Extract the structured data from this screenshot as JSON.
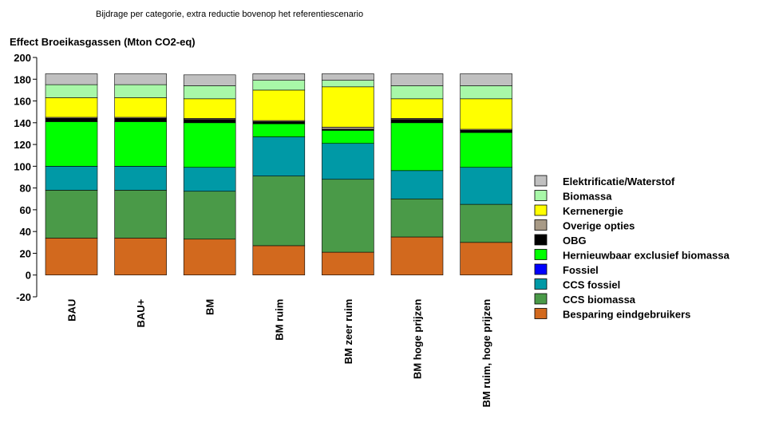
{
  "chart_data": {
    "type": "bar",
    "stacked": true,
    "title": "Bijdrage per categorie, extra reductie bovenop het referentiescenario",
    "ylabel": "Effect Broeikasgassen (Mton CO2-eq)",
    "xlabel": "",
    "ylim": [
      -20,
      200
    ],
    "yticks": [
      -20,
      0,
      20,
      40,
      60,
      80,
      100,
      120,
      140,
      160,
      180,
      200
    ],
    "grid": false,
    "legend_position": "right",
    "categories": [
      "BAU",
      "BAU+",
      "BM",
      "BM ruim",
      "BM zeer ruim",
      "BM hoge prijzen",
      "BM ruim, hoge prijzen"
    ],
    "series": [
      {
        "name": "Besparing eindgebruikers",
        "color": "#d2691e",
        "values": [
          34,
          34,
          33,
          27,
          21,
          35,
          30
        ]
      },
      {
        "name": "CCS biomassa",
        "color": "#4a9a48",
        "values": [
          44,
          44,
          44,
          64,
          67,
          35,
          35
        ]
      },
      {
        "name": "CCS fossiel",
        "color": "#0099a6",
        "values": [
          22,
          22,
          22,
          36,
          33,
          26,
          34
        ]
      },
      {
        "name": "Fossiel",
        "color": "#0000ff",
        "values": [
          0,
          0,
          0,
          0,
          0,
          0,
          0
        ]
      },
      {
        "name": "Hernieuwbaar exclusief biomassa",
        "color": "#00ff00",
        "values": [
          41,
          41,
          41,
          12,
          12,
          44,
          32
        ]
      },
      {
        "name": "OBG",
        "color": "#000000",
        "values": [
          3,
          3,
          3,
          2,
          1,
          3,
          2
        ]
      },
      {
        "name": "Overige opties",
        "color": "#a89a86",
        "values": [
          1,
          1,
          1,
          1,
          2,
          1,
          1
        ]
      },
      {
        "name": "Kernenergie",
        "color": "#ffff00",
        "values": [
          18,
          18,
          18,
          28,
          37,
          18,
          28
        ]
      },
      {
        "name": "Biomassa",
        "color": "#a8f8a8",
        "values": [
          12,
          12,
          12,
          9,
          6,
          12,
          12
        ]
      },
      {
        "name": "Elektrificatie/Waterstof",
        "color": "#c0c0c0",
        "values": [
          10,
          10,
          10,
          6,
          6,
          11,
          11
        ]
      }
    ],
    "legend_order": [
      "Elektrificatie/Waterstof",
      "Biomassa",
      "Kernenergie",
      "Overige opties",
      "OBG",
      "Hernieuwbaar exclusief biomassa",
      "Fossiel",
      "CCS fossiel",
      "CCS biomassa",
      "Besparing eindgebruikers"
    ]
  }
}
